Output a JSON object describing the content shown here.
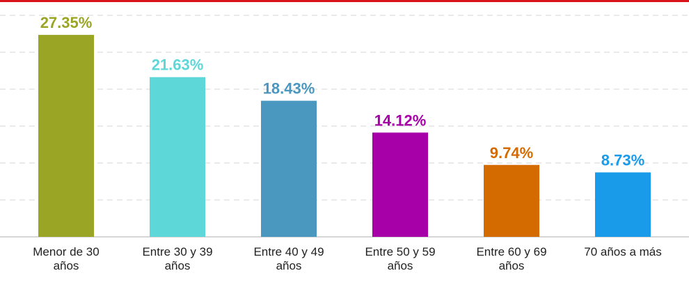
{
  "chart_data": {
    "type": "bar",
    "categories": [
      "Menor de 30 años",
      "Entre 30 y 39 años",
      "Entre 40 y 49 años",
      "Entre 50 y 59 años",
      "Entre 60 y 69 años",
      "70 años a más"
    ],
    "values": [
      27.35,
      21.63,
      18.43,
      14.12,
      9.74,
      8.73
    ],
    "value_labels": [
      "27.35%",
      "21.63%",
      "18.43%",
      "14.12%",
      "9.74%",
      "8.73%"
    ],
    "colors": [
      "#9aa526",
      "#5ed7d9",
      "#4a97bf",
      "#a800a8",
      "#d46b00",
      "#1a9be9"
    ],
    "ylim": [
      0,
      30
    ],
    "yticks": [
      0,
      5,
      10,
      15,
      20,
      25,
      30
    ],
    "grid": true
  }
}
